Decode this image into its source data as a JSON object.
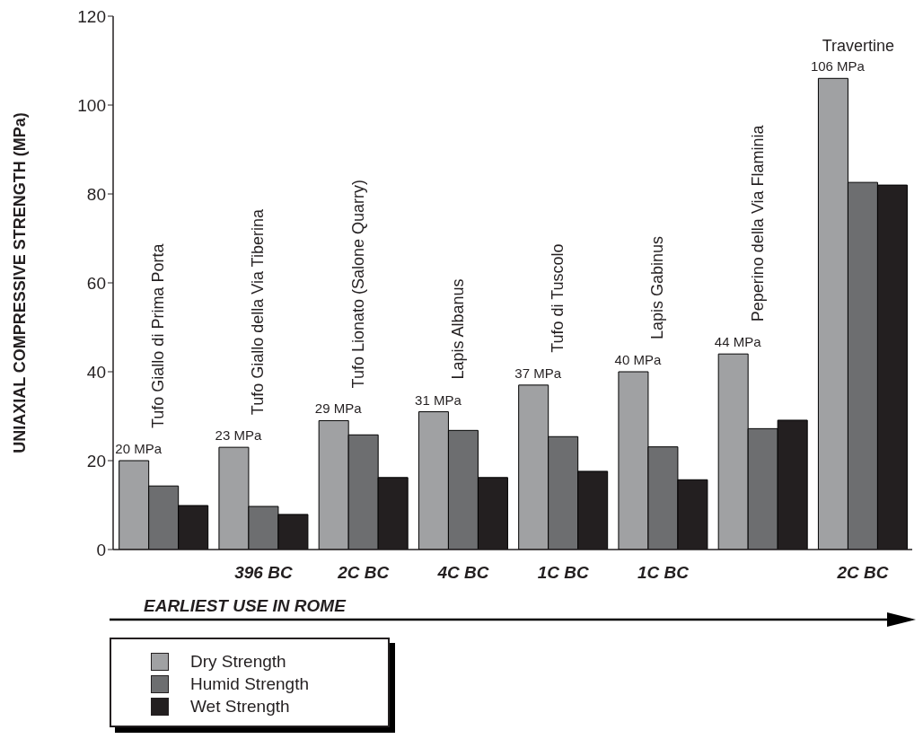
{
  "chart_data": {
    "type": "bar",
    "ylabel": "UNIAXIAL COMPRESSIVE STRENGTH (MPa)",
    "categories": [
      "Tufo Giallo di Prima Porta",
      "Tufo Giallo della Via Tiberina",
      "Tufo Lionato (Salone Quarry)",
      "Lapis Albanus",
      "Tufo di Tuscolo",
      "Lapis Gabinus",
      "Peperino della Via Flaminia",
      "Travertine"
    ],
    "series": [
      {
        "name": "Dry Strength",
        "color": "#a0a1a3",
        "values": [
          20,
          23,
          29,
          31,
          37,
          40,
          44,
          106
        ],
        "value_labels": [
          "20 MPa",
          "23 MPa",
          "29 MPa",
          "31 MPa",
          "37 MPa",
          "40 MPa",
          "44 MPa",
          "106 MPa"
        ]
      },
      {
        "name": "Humid Strength",
        "color": "#6d6e70",
        "values": [
          14.3,
          9.7,
          25.8,
          26.8,
          25.4,
          23.1,
          27.2,
          82.6
        ]
      },
      {
        "name": "Wet Strength",
        "color": "#231f20",
        "values": [
          9.9,
          7.9,
          16.2,
          16.2,
          17.6,
          15.7,
          29.1,
          82
        ]
      }
    ],
    "ylim": [
      0,
      120
    ],
    "yticks": [
      0,
      20,
      40,
      60,
      80,
      100,
      120
    ],
    "legend": "bottom left",
    "annotations": [
      "396 BC",
      "2C BC",
      "4C BC",
      "1C BC",
      "1C BC",
      "2C BC",
      "EARLIEST USE IN ROME"
    ]
  }
}
